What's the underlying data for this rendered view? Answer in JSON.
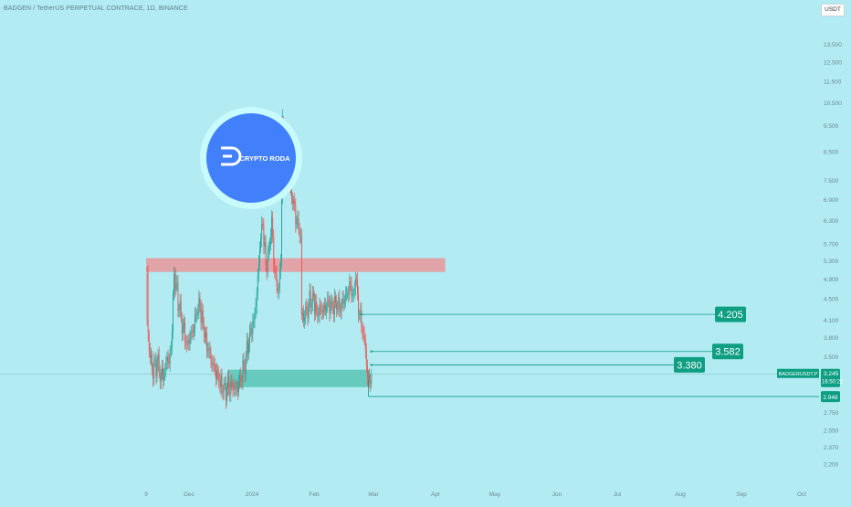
{
  "chart_title": "BADGEN / TetherUS PERPETUAL CONTRACE, 1D, BINANCE",
  "currency": "USDT",
  "logo_text": "CRYPTO RODA",
  "colors": {
    "background": "#b2ebf2",
    "up": "#26a69a",
    "down": "#ef5350",
    "resistance_zone": "#e8979b",
    "support_zone": "#5cc8b8",
    "target_label": "#0e9e82",
    "logo_blue": "#4280fb"
  },
  "chart_data": {
    "type": "candlestick",
    "y_axis": {
      "scale": "log",
      "ylim": [
        2.1,
        14.3
      ],
      "ticks": [
        "13.500",
        "12.500",
        "11.500",
        "10.500",
        "9.500",
        "8.500",
        "7.500",
        "6.900",
        "6.300",
        "5.700",
        "5.300",
        "4.900",
        "4.500",
        "4.100",
        "3.800",
        "3.500",
        "2.750",
        "2.550",
        "2.370",
        "2.200"
      ]
    },
    "x_axis": {
      "ticks": [
        "9",
        "Dec",
        "2024",
        "Feb",
        "Mar",
        "Apr",
        "May",
        "Jun",
        "Jul",
        "Aug",
        "Sep",
        "Oct"
      ]
    },
    "series_anchors": [
      [
        "2023-11-09",
        5.0
      ],
      [
        "2023-11-10",
        4.1
      ],
      [
        "2023-11-12",
        3.6
      ],
      [
        "2023-11-15",
        3.3
      ],
      [
        "2023-11-20",
        3.4
      ],
      [
        "2023-11-24",
        3.25
      ],
      [
        "2023-11-28",
        3.3
      ],
      [
        "2023-11-30",
        3.5
      ],
      [
        "2023-12-02",
        3.4
      ],
      [
        "2023-12-05",
        3.9
      ],
      [
        "2023-12-07",
        5.0
      ],
      [
        "2023-12-09",
        4.8
      ],
      [
        "2023-12-12",
        4.3
      ],
      [
        "2023-12-16",
        4.0
      ],
      [
        "2023-12-20",
        3.7
      ],
      [
        "2023-12-25",
        3.9
      ],
      [
        "2023-12-30",
        4.2
      ],
      [
        "2024-01-02",
        4.35
      ],
      [
        "2024-01-06",
        3.85
      ],
      [
        "2024-01-10",
        3.6
      ],
      [
        "2024-01-13",
        3.45
      ],
      [
        "2024-01-17",
        3.3
      ],
      [
        "2024-01-21",
        3.15
      ],
      [
        "2024-01-25",
        3.0
      ],
      [
        "2024-01-29",
        3.05
      ],
      [
        "2024-02-03",
        3.1
      ],
      [
        "2024-02-07",
        3.05
      ],
      [
        "2024-02-12",
        3.15
      ],
      [
        "2024-02-17",
        3.5
      ],
      [
        "2024-02-21",
        3.9
      ],
      [
        "2024-02-25",
        4.1
      ],
      [
        "2024-02-28",
        4.6
      ],
      [
        "2024-03-02",
        5.6
      ],
      [
        "2024-03-05",
        6.2
      ],
      [
        "2024-03-08",
        5.2
      ],
      [
        "2024-03-11",
        5.6
      ],
      [
        "2024-03-14",
        6.4
      ],
      [
        "2024-03-16",
        5.2
      ],
      [
        "2024-03-19",
        4.75
      ],
      [
        "2024-03-21",
        4.7
      ],
      [
        "2024-03-23",
        5.3
      ],
      [
        "2024-03-25",
        9.6
      ],
      [
        "2024-03-27",
        8.6
      ],
      [
        "2024-03-31",
        7.6
      ],
      [
        "2024-04-04",
        6.8
      ],
      [
        "2024-04-08",
        6.3
      ],
      [
        "2024-04-12",
        5.9
      ],
      [
        "2024-04-13",
        4.2
      ],
      [
        "2024-04-16",
        4.15
      ],
      [
        "2024-04-20",
        4.4
      ],
      [
        "2024-04-24",
        4.6
      ],
      [
        "2024-04-28",
        4.3
      ],
      [
        "2024-05-03",
        4.25
      ],
      [
        "2024-05-08",
        4.35
      ],
      [
        "2024-05-13",
        4.45
      ],
      [
        "2024-05-18",
        4.3
      ],
      [
        "2024-05-23",
        4.4
      ],
      [
        "2024-05-28",
        4.6
      ],
      [
        "2024-06-01",
        4.8
      ],
      [
        "2024-06-04",
        4.6
      ],
      [
        "2024-06-06",
        4.9
      ],
      [
        "2024-06-08",
        4.6
      ],
      [
        "2024-06-10",
        4.2
      ],
      [
        "2024-06-13",
        3.9
      ],
      [
        "2024-06-16",
        3.6
      ],
      [
        "2024-06-18",
        3.2
      ],
      [
        "2024-06-20",
        3.15
      ],
      [
        "2024-06-22",
        3.245
      ]
    ],
    "zones": [
      {
        "kind": "resistance",
        "start": "2023-11-09",
        "end": "2024-09-04",
        "low": 5.05,
        "high": 5.36
      },
      {
        "kind": "support",
        "start": "2024-01-30",
        "end": "2024-06-20",
        "low": 3.07,
        "high": 3.31
      }
    ],
    "targets": [
      {
        "label": "4.205",
        "value": 4.205,
        "start": "2024-06-12"
      },
      {
        "label": "3.582",
        "value": 3.582,
        "start": "2024-06-22"
      },
      {
        "label": "3.380",
        "value": 3.38,
        "start": "2024-06-22"
      }
    ],
    "stop_line": {
      "label": "2.948",
      "value": 2.948,
      "start": "2024-06-19"
    },
    "current": {
      "symbol": "BADGERUSDT.P",
      "price": "3.245",
      "countdown": "16:50:22",
      "value": 3.245
    }
  }
}
